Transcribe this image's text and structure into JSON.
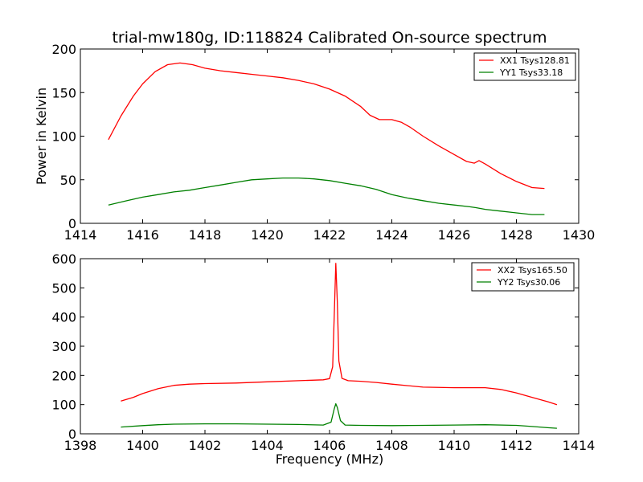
{
  "title": "trial-mw180g, ID:118824 Calibrated On-source spectrum",
  "chart_data": [
    {
      "type": "line",
      "title": "trial-mw180g, ID:118824 Calibrated On-source spectrum",
      "xlabel": "",
      "ylabel": "Power in Kelvin",
      "xlim": [
        1414,
        1430
      ],
      "ylim": [
        0,
        200
      ],
      "xticks": [
        1414,
        1416,
        1418,
        1420,
        1422,
        1424,
        1426,
        1428,
        1430
      ],
      "yticks": [
        0,
        50,
        100,
        150,
        200
      ],
      "legend": "top-right",
      "grid": false,
      "series": [
        {
          "name": "XX1 Tsys128.81",
          "color": "#ff0000",
          "x": [
            1414.9,
            1415.3,
            1415.7,
            1416.0,
            1416.4,
            1416.8,
            1417.2,
            1417.6,
            1418.0,
            1418.5,
            1419.0,
            1419.5,
            1420.0,
            1420.5,
            1421.0,
            1421.5,
            1422.0,
            1422.5,
            1423.0,
            1423.3,
            1423.6,
            1424.0,
            1424.3,
            1424.6,
            1425.0,
            1425.5,
            1426.0,
            1426.4,
            1426.65,
            1426.8,
            1427.0,
            1427.5,
            1428.0,
            1428.5,
            1428.9
          ],
          "y": [
            96,
            123,
            146,
            160,
            174,
            182,
            184,
            182,
            178,
            175,
            173,
            171,
            169,
            167,
            164,
            160,
            154,
            146,
            134,
            124,
            119,
            119,
            116,
            110,
            100,
            89,
            79,
            71,
            69,
            72,
            68,
            57,
            48,
            41,
            40
          ]
        },
        {
          "name": "YY1 Tsys33.18",
          "color": "#008000",
          "x": [
            1414.9,
            1415.5,
            1416.0,
            1416.5,
            1417.0,
            1417.5,
            1418.0,
            1418.5,
            1419.0,
            1419.5,
            1420.0,
            1420.5,
            1421.0,
            1421.5,
            1422.0,
            1422.5,
            1423.0,
            1423.5,
            1424.0,
            1424.5,
            1425.0,
            1425.5,
            1426.0,
            1426.5,
            1426.7,
            1427.0,
            1427.5,
            1428.0,
            1428.5,
            1428.9
          ],
          "y": [
            21,
            26,
            30,
            33,
            36,
            38,
            41,
            44,
            47,
            50,
            51,
            52,
            52,
            51,
            49,
            46,
            43,
            39,
            33,
            29,
            26,
            23,
            21,
            19,
            18,
            16,
            14,
            12,
            10,
            10
          ]
        }
      ]
    },
    {
      "type": "line",
      "xlabel": "Frequency (MHz)",
      "ylabel": "",
      "xlim": [
        1398,
        1414
      ],
      "ylim": [
        0,
        600
      ],
      "xticks": [
        1398,
        1400,
        1402,
        1404,
        1406,
        1408,
        1410,
        1412,
        1414
      ],
      "yticks": [
        0,
        100,
        200,
        300,
        400,
        500,
        600
      ],
      "legend": "top-right",
      "grid": false,
      "series": [
        {
          "name": "XX2 Tsys165.50",
          "color": "#ff0000",
          "x": [
            1399.3,
            1399.7,
            1400.0,
            1400.5,
            1401.0,
            1401.5,
            1402.0,
            1403.0,
            1404.0,
            1405.0,
            1405.8,
            1406.0,
            1406.1,
            1406.15,
            1406.2,
            1406.25,
            1406.3,
            1406.4,
            1406.6,
            1407.0,
            1407.5,
            1408.0,
            1409.0,
            1410.0,
            1411.0,
            1411.5,
            1412.0,
            1412.5,
            1413.0,
            1413.3
          ],
          "y": [
            112,
            125,
            138,
            155,
            166,
            170,
            172,
            174,
            178,
            182,
            185,
            189,
            230,
            400,
            584,
            450,
            250,
            190,
            182,
            180,
            176,
            170,
            160,
            158,
            158,
            152,
            140,
            125,
            110,
            100
          ]
        },
        {
          "name": "YY2 Tsys30.06",
          "color": "#008000",
          "x": [
            1399.3,
            1400.0,
            1400.5,
            1401.0,
            1402.0,
            1403.0,
            1404.0,
            1405.0,
            1405.8,
            1406.05,
            1406.15,
            1406.2,
            1406.25,
            1406.35,
            1406.5,
            1407.0,
            1408.0,
            1409.0,
            1410.0,
            1411.0,
            1412.0,
            1412.5,
            1413.0,
            1413.3
          ],
          "y": [
            23,
            28,
            31,
            33,
            34,
            34,
            33,
            32,
            30,
            40,
            85,
            103,
            90,
            45,
            30,
            29,
            28,
            29,
            30,
            31,
            29,
            25,
            21,
            19
          ]
        }
      ]
    }
  ]
}
